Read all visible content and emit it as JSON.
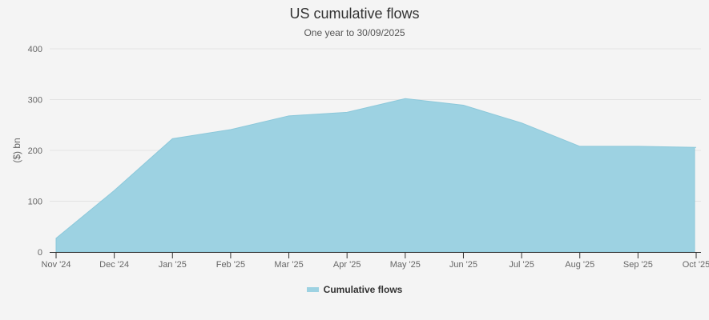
{
  "chart_data": {
    "type": "area",
    "title": "US cumulative flows",
    "subtitle": "One year to 30/09/2025",
    "xlabel": "",
    "ylabel": "($) bn",
    "ylim": [
      0,
      400
    ],
    "yticks": [
      0,
      100,
      200,
      300,
      400
    ],
    "grid": true,
    "legend_position": "bottom",
    "categories": [
      "Nov '24",
      "Dec '24",
      "Jan '25",
      "Feb '25",
      "Mar '25",
      "Apr '25",
      "May '25",
      "Jun '25",
      "Jul '25",
      "Aug '25",
      "Sep '25",
      "Oct '25"
    ],
    "series": [
      {
        "name": "Cumulative flows",
        "color": "#9dd2e2",
        "values": [
          27,
          121,
          223,
          241,
          268,
          275,
          302,
          289,
          254,
          208,
          208,
          206
        ]
      }
    ]
  },
  "legend": {
    "label": "Cumulative flows",
    "color": "#9dd2e2"
  }
}
